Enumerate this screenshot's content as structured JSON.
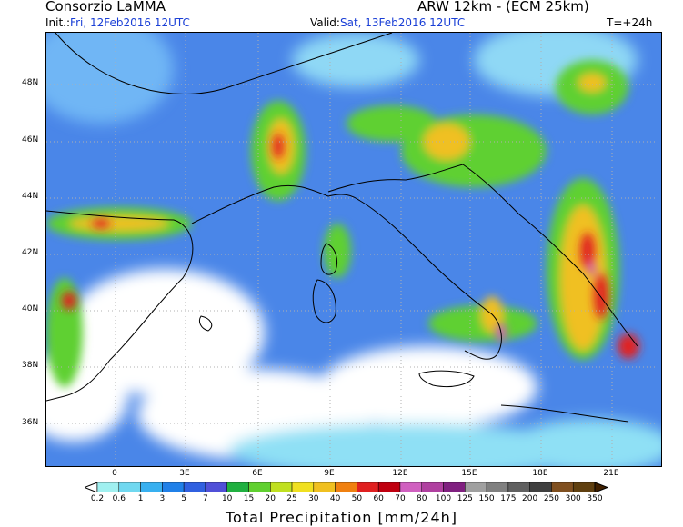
{
  "header": {
    "title": "Consorzio LaMMA",
    "model": "ARW 12km - (ECM 25km)",
    "init_label": "Init.:",
    "init_value": "Fri, 12Feb2016 12UTC",
    "valid_label": "Valid:",
    "valid_value": "Sat, 13Feb2016 12UTC",
    "forecast_step": "T=+24h"
  },
  "map": {
    "lat_labels": [
      "48N",
      "46N",
      "44N",
      "42N",
      "40N",
      "38N",
      "36N"
    ],
    "lon_labels": [
      "0",
      "3E",
      "6E",
      "9E",
      "12E",
      "15E",
      "18E",
      "21E"
    ]
  },
  "colorbar": {
    "title": "Total Precipitation [mm/24h]",
    "levels": [
      "0.2",
      "0.6",
      "1",
      "3",
      "5",
      "7",
      "10",
      "15",
      "20",
      "25",
      "30",
      "40",
      "50",
      "60",
      "70",
      "80",
      "100",
      "125",
      "150",
      "175",
      "200",
      "250",
      "300",
      "350"
    ],
    "colors": [
      "#a0f0f0",
      "#70d8f0",
      "#38b0f0",
      "#2080e8",
      "#3060e0",
      "#5050d8",
      "#20b040",
      "#60d030",
      "#c0e020",
      "#f0e020",
      "#f0c020",
      "#f08010",
      "#e02020",
      "#c00010",
      "#d060c0",
      "#b040a0",
      "#802080",
      "#a0a0a0",
      "#808080",
      "#606060",
      "#404040",
      "#805020",
      "#604010",
      "#402000"
    ]
  }
}
